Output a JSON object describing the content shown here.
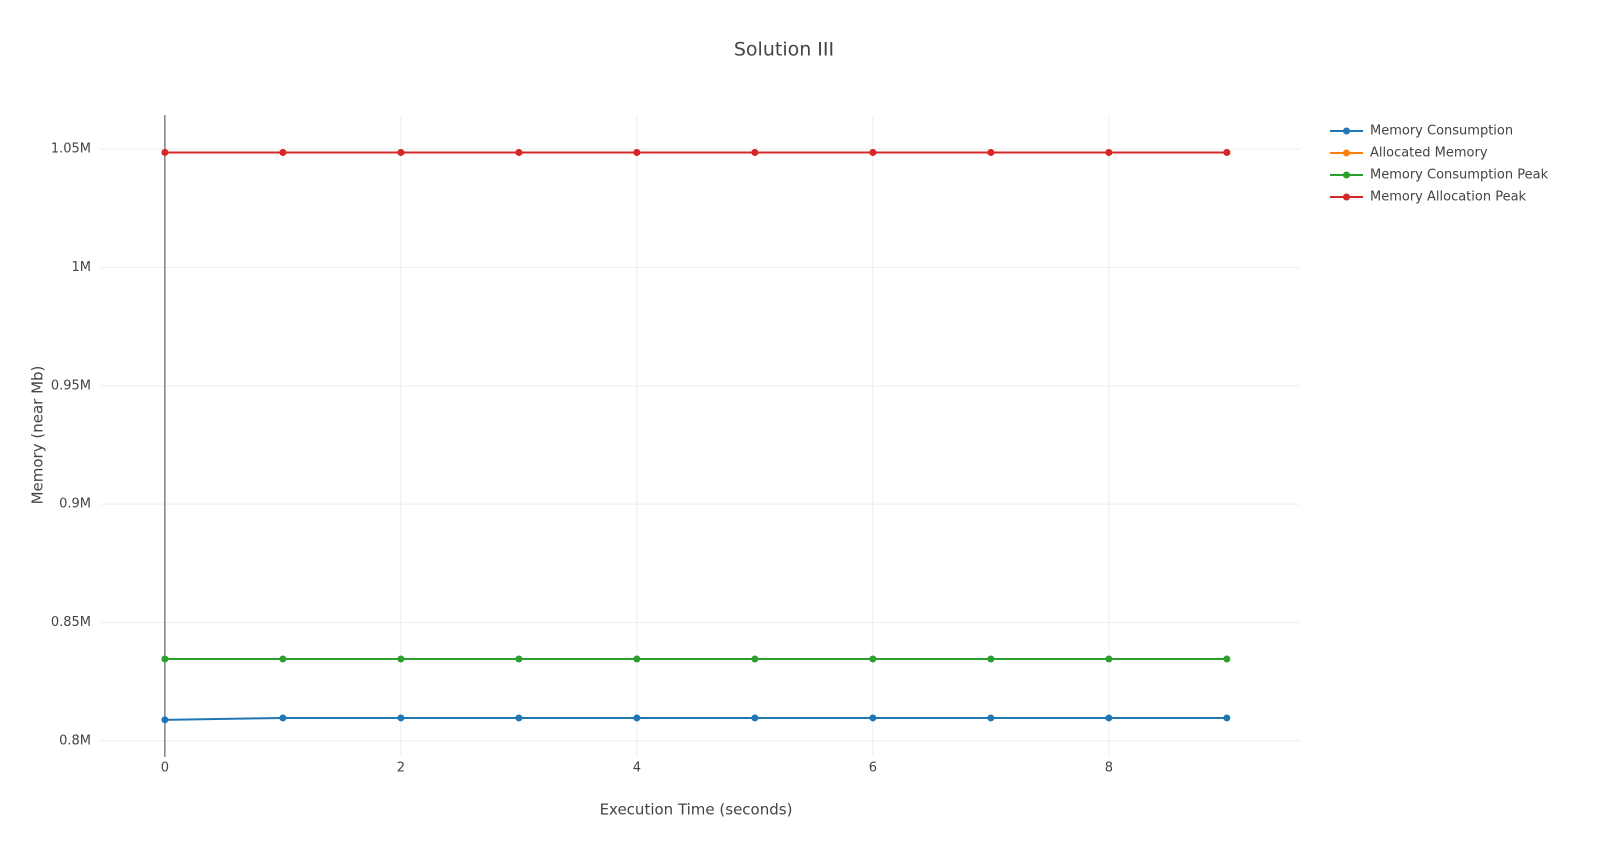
{
  "chart_data": {
    "type": "line",
    "title": "Solution III",
    "x_label": "Execution Time (seconds)",
    "y_label": "Memory (near Mb)",
    "x": [
      0,
      1,
      2,
      3,
      4,
      5,
      6,
      7,
      8,
      9
    ],
    "series": [
      {
        "name": "Memory Consumption",
        "color": "#1f77b4",
        "values": [
          808900,
          809700,
          809700,
          809700,
          809700,
          809700,
          809700,
          809700,
          809700,
          809700
        ]
      },
      {
        "name": "Allocated Memory",
        "color": "#ff7f0e",
        "values": [
          1048576,
          1048576,
          1048576,
          1048576,
          1048576,
          1048576,
          1048576,
          1048576,
          1048576,
          1048576
        ]
      },
      {
        "name": "Memory Consumption Peak",
        "color": "#2ca02c",
        "values": [
          834600,
          834600,
          834600,
          834600,
          834600,
          834600,
          834600,
          834600,
          834600,
          834600
        ]
      },
      {
        "name": "Memory Allocation Peak",
        "color": "#d62728",
        "values": [
          1048576,
          1048576,
          1048576,
          1048576,
          1048576,
          1048576,
          1048576,
          1048576,
          1048576,
          1048576
        ]
      }
    ],
    "xlim": [
      -0.55,
      9.62
    ],
    "xticks": [
      0,
      2,
      4,
      6,
      8
    ],
    "ylim": [
      793200,
      1064400
    ],
    "yticks": [
      {
        "value": 800000,
        "label": "0.8M"
      },
      {
        "value": 850000,
        "label": "0.85M"
      },
      {
        "value": 900000,
        "label": "0.9M"
      },
      {
        "value": 950000,
        "label": "0.95M"
      },
      {
        "value": 1000000,
        "label": "1M"
      },
      {
        "value": 1050000,
        "label": "1.05M"
      }
    ],
    "grid": true,
    "legend": "right"
  }
}
